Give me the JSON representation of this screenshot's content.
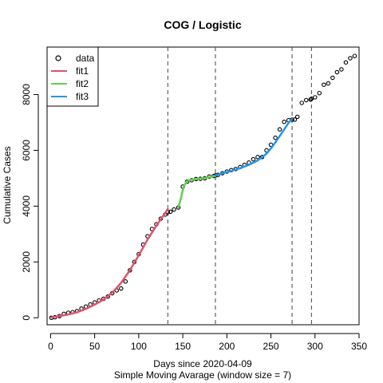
{
  "chart_data": {
    "type": "line",
    "title": "COG / Logistic",
    "xlabel": "Days since 2020-04-09",
    "xsublabel": "Simple Moving Avarage (window size = 7)",
    "ylabel": "Cumulative Cases",
    "xlim": [
      -4,
      350
    ],
    "ylim": [
      -250,
      9700
    ],
    "xticks": [
      0,
      50,
      100,
      150,
      200,
      250,
      300,
      350
    ],
    "yticks": [
      0,
      2000,
      4000,
      6000,
      8000
    ],
    "grid": false,
    "legend_position": "top-left",
    "breakpoints": [
      133,
      187,
      274,
      296
    ],
    "data": {
      "name": "data",
      "x": [
        1,
        5,
        10,
        15,
        20,
        25,
        30,
        35,
        40,
        45,
        50,
        55,
        60,
        65,
        70,
        75,
        80,
        85,
        90,
        95,
        100,
        105,
        110,
        115,
        120,
        125,
        130,
        133,
        136,
        140,
        145,
        150,
        155,
        160,
        165,
        170,
        175,
        180,
        185,
        187,
        190,
        195,
        200,
        205,
        210,
        215,
        220,
        225,
        230,
        235,
        240,
        245,
        250,
        255,
        260,
        265,
        270,
        274,
        277,
        280,
        285,
        290,
        295,
        296,
        300,
        305,
        310,
        315,
        320,
        325,
        330,
        335,
        340,
        345
      ],
      "y": [
        0,
        20,
        60,
        140,
        180,
        200,
        240,
        330,
        400,
        480,
        550,
        620,
        680,
        760,
        880,
        980,
        1050,
        1300,
        1700,
        2000,
        2280,
        2620,
        2920,
        3180,
        3350,
        3550,
        3700,
        3780,
        3800,
        3880,
        3950,
        4700,
        4880,
        4930,
        4970,
        4980,
        5000,
        5060,
        5080,
        5100,
        5120,
        5180,
        5240,
        5290,
        5330,
        5400,
        5480,
        5560,
        5680,
        5760,
        5760,
        6000,
        6200,
        6450,
        6750,
        7020,
        7080,
        7100,
        7100,
        7200,
        7700,
        7800,
        7820,
        7850,
        7900,
        8050,
        8350,
        8400,
        8600,
        8800,
        8900,
        9150,
        9300,
        9380
      ]
    },
    "series": [
      {
        "name": "fit1",
        "color": "#DF536B",
        "x": [
          1,
          10,
          20,
          30,
          40,
          50,
          60,
          70,
          80,
          90,
          100,
          110,
          120,
          130,
          133
        ],
        "y": [
          20,
          55,
          115,
          200,
          320,
          470,
          650,
          900,
          1250,
          1700,
          2240,
          2800,
          3300,
          3750,
          3900
        ]
      },
      {
        "name": "fit2",
        "color": "#61D04F",
        "x": [
          145,
          148,
          151,
          154,
          157,
          160,
          165,
          170,
          175,
          180,
          185,
          187
        ],
        "y": [
          3950,
          4300,
          4700,
          4870,
          4930,
          4950,
          4970,
          4990,
          5010,
          5040,
          5070,
          5080
        ]
      },
      {
        "name": "fit3",
        "color": "#2297E6",
        "x": [
          187,
          195,
          205,
          215,
          225,
          235,
          245,
          252,
          258,
          264,
          270,
          274
        ],
        "y": [
          5100,
          5180,
          5260,
          5360,
          5480,
          5640,
          5880,
          6150,
          6420,
          6700,
          6980,
          7130
        ]
      }
    ]
  }
}
